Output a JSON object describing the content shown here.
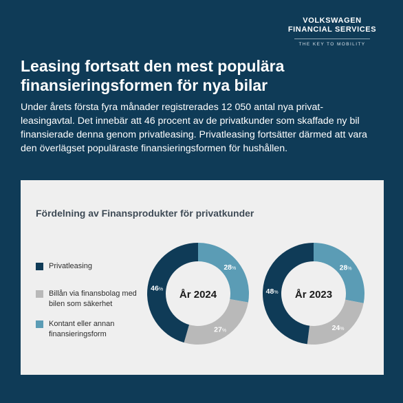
{
  "brand": {
    "line1": "VOLKSWAGEN",
    "line2": "FINANCIAL SERVICES",
    "tagline": "THE KEY TO MOBILITY"
  },
  "headline": "Leasing fortsatt den mest populära finansieringsformen för nya bilar",
  "intro": "Under årets första fyra månader registrerades 12 050 antal nya privat­leasingavtal. Det innebär att 46 procent av de privatkunder som skaffade ny bil finansierade denna genom privatleasing. Privatleasing fortsätter därmed att vara den överlägset populäraste finansieringsformen för hushållen.",
  "chart_title": "Fördelning av Finansprodukter för privatkunder",
  "legend": [
    {
      "label": "Privatleasing",
      "color": "#0f3b57"
    },
    {
      "label": "Billån via finansbolag med bilen som säkerhet",
      "color": "#b9b9b9"
    },
    {
      "label": "Kontant eller annan finansieringsform",
      "color": "#5b9cb5"
    }
  ],
  "colors": {
    "background": "#0f3b57",
    "panel": "#efefef",
    "privatleasing": "#0f3b57",
    "billan": "#b9b9b9",
    "kontant": "#5b9cb5"
  },
  "chart_data": {
    "type": "pie",
    "variant": "donut",
    "title": "Fördelning av Finansprodukter för privatkunder",
    "categories": [
      "Privatleasing",
      "Billån via finansbolag med bilen som säkerhet",
      "Kontant eller annan finansieringsform"
    ],
    "unit": "%",
    "charts": [
      {
        "center_label": "År 2024",
        "values": [
          46,
          27,
          28
        ]
      },
      {
        "center_label": "År 2023",
        "values": [
          48,
          24,
          28
        ]
      }
    ]
  }
}
